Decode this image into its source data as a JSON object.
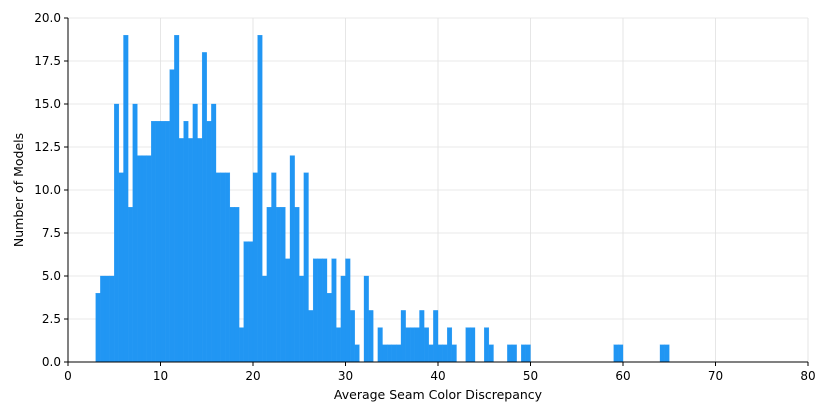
{
  "chart_data": {
    "type": "bar",
    "xlabel": "Average Seam Color Discrepancy",
    "ylabel": "Number of Models",
    "xlim": [
      0,
      80
    ],
    "ylim": [
      0,
      20
    ],
    "xticks": [
      "0",
      "10",
      "20",
      "30",
      "40",
      "50",
      "60",
      "70",
      "80"
    ],
    "yticks": [
      "0.0",
      "2.5",
      "5.0",
      "7.5",
      "10.0",
      "12.5",
      "15.0",
      "17.5",
      "20.0"
    ],
    "grid": true,
    "bar_color": "#2196f3",
    "bin_width": 0.5,
    "bins": [
      {
        "x": 3.25,
        "count": 4
      },
      {
        "x": 3.75,
        "count": 5
      },
      {
        "x": 4.25,
        "count": 5
      },
      {
        "x": 4.75,
        "count": 5
      },
      {
        "x": 5.25,
        "count": 15
      },
      {
        "x": 5.75,
        "count": 11
      },
      {
        "x": 6.25,
        "count": 19
      },
      {
        "x": 6.75,
        "count": 9
      },
      {
        "x": 7.25,
        "count": 15
      },
      {
        "x": 7.75,
        "count": 12
      },
      {
        "x": 8.25,
        "count": 12
      },
      {
        "x": 8.75,
        "count": 12
      },
      {
        "x": 9.25,
        "count": 14
      },
      {
        "x": 9.75,
        "count": 14
      },
      {
        "x": 10.25,
        "count": 14
      },
      {
        "x": 10.75,
        "count": 14
      },
      {
        "x": 11.25,
        "count": 17
      },
      {
        "x": 11.75,
        "count": 19
      },
      {
        "x": 12.25,
        "count": 13
      },
      {
        "x": 12.75,
        "count": 14
      },
      {
        "x": 13.25,
        "count": 13
      },
      {
        "x": 13.75,
        "count": 15
      },
      {
        "x": 14.25,
        "count": 13
      },
      {
        "x": 14.75,
        "count": 18
      },
      {
        "x": 15.25,
        "count": 14
      },
      {
        "x": 15.75,
        "count": 15
      },
      {
        "x": 16.25,
        "count": 11
      },
      {
        "x": 16.75,
        "count": 11
      },
      {
        "x": 17.25,
        "count": 11
      },
      {
        "x": 17.75,
        "count": 9
      },
      {
        "x": 18.25,
        "count": 9
      },
      {
        "x": 18.75,
        "count": 2
      },
      {
        "x": 19.25,
        "count": 7
      },
      {
        "x": 19.75,
        "count": 7
      },
      {
        "x": 20.25,
        "count": 11
      },
      {
        "x": 20.75,
        "count": 19
      },
      {
        "x": 21.25,
        "count": 5
      },
      {
        "x": 21.75,
        "count": 9
      },
      {
        "x": 22.25,
        "count": 11
      },
      {
        "x": 22.75,
        "count": 9
      },
      {
        "x": 23.25,
        "count": 9
      },
      {
        "x": 23.75,
        "count": 6
      },
      {
        "x": 24.25,
        "count": 12
      },
      {
        "x": 24.75,
        "count": 9
      },
      {
        "x": 25.25,
        "count": 5
      },
      {
        "x": 25.75,
        "count": 11
      },
      {
        "x": 26.25,
        "count": 3
      },
      {
        "x": 26.75,
        "count": 6
      },
      {
        "x": 27.25,
        "count": 6
      },
      {
        "x": 27.75,
        "count": 6
      },
      {
        "x": 28.25,
        "count": 4
      },
      {
        "x": 28.75,
        "count": 6
      },
      {
        "x": 29.25,
        "count": 2
      },
      {
        "x": 29.75,
        "count": 5
      },
      {
        "x": 30.25,
        "count": 6
      },
      {
        "x": 30.75,
        "count": 3
      },
      {
        "x": 31.25,
        "count": 1
      },
      {
        "x": 32.25,
        "count": 5
      },
      {
        "x": 32.75,
        "count": 3
      },
      {
        "x": 33.25,
        "count": 0
      },
      {
        "x": 33.75,
        "count": 2
      },
      {
        "x": 34.25,
        "count": 1
      },
      {
        "x": 34.75,
        "count": 1
      },
      {
        "x": 35.25,
        "count": 1
      },
      {
        "x": 35.75,
        "count": 1
      },
      {
        "x": 36.25,
        "count": 3
      },
      {
        "x": 36.75,
        "count": 2
      },
      {
        "x": 37.25,
        "count": 2
      },
      {
        "x": 37.75,
        "count": 2
      },
      {
        "x": 38.25,
        "count": 3
      },
      {
        "x": 38.75,
        "count": 2
      },
      {
        "x": 39.25,
        "count": 1
      },
      {
        "x": 39.75,
        "count": 3
      },
      {
        "x": 40.25,
        "count": 1
      },
      {
        "x": 40.75,
        "count": 1
      },
      {
        "x": 41.25,
        "count": 2
      },
      {
        "x": 41.75,
        "count": 1
      },
      {
        "x": 43.25,
        "count": 2
      },
      {
        "x": 43.75,
        "count": 2
      },
      {
        "x": 45.25,
        "count": 2
      },
      {
        "x": 45.75,
        "count": 1
      },
      {
        "x": 47.75,
        "count": 1
      },
      {
        "x": 48.25,
        "count": 1
      },
      {
        "x": 49.25,
        "count": 1
      },
      {
        "x": 49.75,
        "count": 1
      },
      {
        "x": 59.25,
        "count": 1
      },
      {
        "x": 59.75,
        "count": 1
      },
      {
        "x": 64.25,
        "count": 1
      },
      {
        "x": 64.75,
        "count": 1
      }
    ]
  }
}
